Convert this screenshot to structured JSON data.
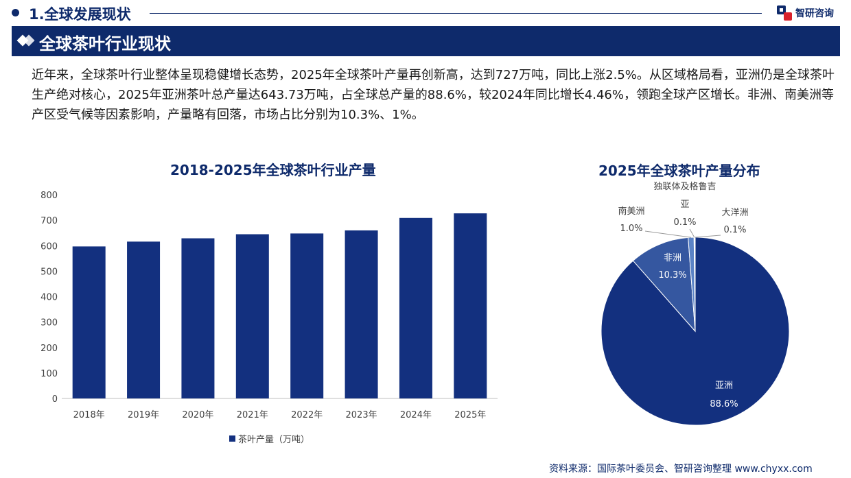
{
  "header": {
    "section_title": "1.全球发展现状",
    "logo_text": "智研咨询"
  },
  "banner": {
    "title": "全球茶叶行业现状"
  },
  "paragraph": "近年来，全球茶叶行业整体呈现稳健增长态势，2025年全球茶叶产量再创新高，达到727万吨，同比上涨2.5%。从区域格局看，亚洲仍是全球茶叶生产绝对核心，2025年亚洲茶叶总产量达643.73万吨，占全球总产量的88.6%，较2024年同比增长4.46%，领跑全球产区增长。非洲、南美洲等产区受气候等因素影响，产量略有回落，市场占比分别为10.3%、1%。",
  "colors": {
    "navy": "#0e2a6b",
    "bar": "#13307f",
    "pie_asia": "#13307f",
    "pie_africa": "#3557a0",
    "pie_south_america": "#5b83c6",
    "pie_cis": "#4fa3d8",
    "pie_oceania": "#8fc1ea"
  },
  "chart_data": [
    {
      "type": "bar",
      "title": "2018-2025年全球茶叶行业产量",
      "categories": [
        "2018年",
        "2019年",
        "2020年",
        "2021年",
        "2022年",
        "2023年",
        "2024年",
        "2025年"
      ],
      "series": [
        {
          "name": "茶叶产量（万吨）",
          "values": [
            597,
            616,
            629,
            645,
            648,
            660,
            709,
            727
          ]
        }
      ],
      "yticks": [
        "0",
        "100",
        "200",
        "300",
        "400",
        "500",
        "600",
        "700",
        "800"
      ],
      "ylim": [
        0,
        800
      ],
      "grid": false,
      "legend": "bottom"
    },
    {
      "type": "pie",
      "title": "2025年全球茶叶产量分布",
      "slices": [
        {
          "label": "亚洲",
          "value": 88.6,
          "text": "88.6%"
        },
        {
          "label": "非洲",
          "value": 10.3,
          "text": "10.3%"
        },
        {
          "label": "南美洲",
          "value": 1.0,
          "text": "1.0%"
        },
        {
          "label": "独联体及格鲁吉亚",
          "label_lines": [
            "独联体及格鲁吉",
            "亚"
          ],
          "value": 0.1,
          "text": "0.1%"
        },
        {
          "label": "大洋洲",
          "value": 0.1,
          "text": "0.1%"
        }
      ]
    }
  ],
  "source": "资料来源：国际茶叶委员会、智研咨询整理 www.chyxx.com"
}
